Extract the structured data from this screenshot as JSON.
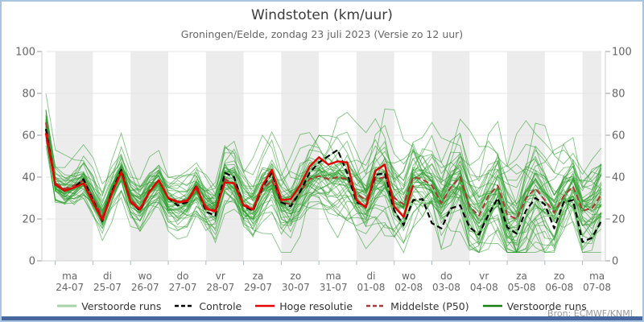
{
  "window": {
    "title": "Windstoten (km/uur)",
    "subtitle": "Groningen/Eelde, zondag 23 juli 2023 (Versie zo 12 uur)",
    "source_label": "Bron: ECMWF/KNMI"
  },
  "colors": {
    "frame_border": "#a9c4e0",
    "bottom_bar": "#46689e",
    "day_band": "#ececec",
    "gridline": "#e4e4e4",
    "spine": "#cfcfcf",
    "x_tick": "#aab8cc",
    "y_tick": "#999999",
    "tick_label": "#666666",
    "title_text": "#3b3b3b",
    "subtitle_text": "#666666",
    "legend_text": "#333333",
    "source_text": "#999999",
    "ensemble_green": "#2f9e2f",
    "ensemble_light_green": "#a8d3a8",
    "ensemble_dark_green": "#157f15",
    "control_black": "#000000",
    "hres_red": "#e60000",
    "median_dark_red": "#b03535"
  },
  "legend": {
    "items": [
      {
        "label": "Verstoorde runs",
        "color": "#a8d3a8",
        "dash": "",
        "width": 3
      },
      {
        "label": "Controle",
        "color": "#000000",
        "dash": "5,3",
        "width": 2.5
      },
      {
        "label": "Hoge resolutie",
        "color": "#e60000",
        "dash": "",
        "width": 2.5
      },
      {
        "label": "Middelste (P50)",
        "color": "#b03535",
        "dash": "5,3",
        "width": 2.5
      },
      {
        "label": "Verstoorde runs",
        "color": "#157f15",
        "dash": "",
        "width": 2.5
      }
    ]
  },
  "chart_data": {
    "type": "line",
    "title": "Windstoten (km/uur)",
    "subtitle": "Groningen/Eelde, zondag 23 juli 2023 (Versie zo 12 uur)",
    "ylabel": "km/uur",
    "ylim": [
      0,
      100
    ],
    "yticks": [
      0,
      20,
      40,
      60,
      80,
      100
    ],
    "grid": "horizontal",
    "legend_position": "bottom-center",
    "time_start": "2023-07-23 18:00",
    "time_step_hours": 6,
    "x_day_ticks": [
      {
        "dow": "ma",
        "date": "24-07"
      },
      {
        "dow": "di",
        "date": "25-07"
      },
      {
        "dow": "wo",
        "date": "26-07"
      },
      {
        "dow": "do",
        "date": "27-07"
      },
      {
        "dow": "vr",
        "date": "28-07"
      },
      {
        "dow": "za",
        "date": "29-07"
      },
      {
        "dow": "zo",
        "date": "30-07"
      },
      {
        "dow": "ma",
        "date": "31-07"
      },
      {
        "dow": "di",
        "date": "01-08"
      },
      {
        "dow": "wo",
        "date": "02-08"
      },
      {
        "dow": "do",
        "date": "03-08"
      },
      {
        "dow": "vr",
        "date": "04-08"
      },
      {
        "dow": "za",
        "date": "05-08"
      },
      {
        "dow": "zo",
        "date": "06-08"
      },
      {
        "dow": "ma",
        "date": "07-08"
      }
    ],
    "series": [
      {
        "name": "Controle",
        "role": "control",
        "line": "dashed",
        "color": "#000000",
        "values": [
          63,
          36.5,
          33.5,
          35,
          39,
          29,
          19,
          33,
          43.5,
          28,
          24,
          33,
          38.5,
          30,
          26.5,
          28,
          36,
          23.5,
          21.5,
          42,
          40,
          26,
          24,
          35,
          42,
          28,
          26,
          33,
          42,
          47,
          50,
          53,
          42,
          28,
          26,
          41,
          42,
          24,
          17,
          29,
          29.5,
          18,
          15.5,
          25,
          26.5,
          16,
          12.5,
          22,
          30,
          16,
          13,
          24,
          30,
          27,
          15.5,
          28,
          29,
          9,
          11,
          19
        ]
      },
      {
        "name": "Hoge resolutie",
        "role": "hres",
        "line": "solid",
        "color": "#e60000",
        "values": [
          61,
          36.5,
          33.5,
          35,
          37,
          28,
          19.5,
          32,
          42.5,
          28,
          24.5,
          33,
          38.5,
          30,
          28,
          28.5,
          35.5,
          25,
          23.5,
          37.5,
          37,
          26.5,
          24.5,
          36,
          43.5,
          29,
          29.5,
          36,
          45,
          49.5,
          46,
          47.5,
          47,
          29,
          25.5,
          43,
          46,
          26,
          21,
          36
        ]
      },
      {
        "name": "Middelste (P50)",
        "role": "median",
        "line": "dashed",
        "color": "#b03535",
        "values": [
          66,
          37,
          34.5,
          36,
          38.5,
          30,
          21,
          33,
          42,
          29,
          25,
          33.5,
          38.5,
          30,
          28.5,
          29,
          34,
          26,
          24,
          39,
          37,
          27,
          25,
          34,
          38.5,
          28,
          27,
          33,
          39,
          40.5,
          39,
          40,
          39,
          32,
          29,
          39,
          40,
          30,
          27,
          40,
          39,
          36,
          27.5,
          35,
          40,
          26,
          21.5,
          31,
          36,
          22,
          20,
          30,
          34.5,
          29,
          23,
          31,
          35.5,
          24,
          25,
          31.5
        ]
      }
    ],
    "ensemble": {
      "name": "Verstoorde runs",
      "count": 48,
      "color": "#2f9e2f",
      "opacity": 0.6,
      "seed": 11,
      "spread_start": 3.5,
      "spread_end": 13,
      "spread_pow": 0.85
    }
  }
}
